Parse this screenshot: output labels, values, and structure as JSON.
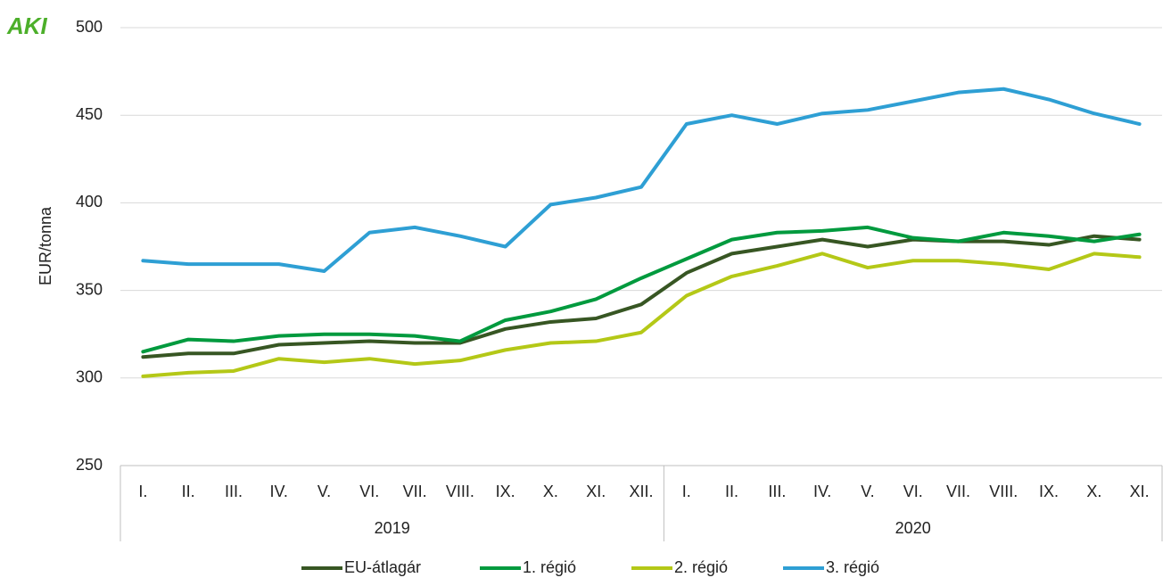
{
  "logo": "AKI",
  "chart_data": {
    "type": "line",
    "y_label": "EUR/tonna",
    "categories": [
      "I.",
      "II.",
      "III.",
      "IV.",
      "V.",
      "VI.",
      "VII.",
      "VIII.",
      "IX.",
      "X.",
      "XI.",
      "XII.",
      "I.",
      "II.",
      "III.",
      "IV.",
      "V.",
      "VI.",
      "VII.",
      "VIII.",
      "IX.",
      "X.",
      "XI."
    ],
    "category_groups": [
      {
        "label": "2019",
        "size": 12
      },
      {
        "label": "2020",
        "size": 11
      }
    ],
    "series": [
      {
        "name": "EU-átlagár",
        "color": "#375623",
        "values": [
          312,
          314,
          314,
          319,
          320,
          321,
          320,
          320,
          328,
          332,
          334,
          342,
          360,
          371,
          375,
          379,
          375,
          379,
          378,
          378,
          376,
          381,
          379
        ]
      },
      {
        "name": "1. régió",
        "color": "#009a3e",
        "values": [
          315,
          322,
          321,
          324,
          325,
          325,
          324,
          321,
          333,
          338,
          345,
          357,
          368,
          379,
          383,
          384,
          386,
          380,
          378,
          383,
          381,
          378,
          382
        ]
      },
      {
        "name": "2. régió",
        "color": "#b4c817",
        "values": [
          301,
          303,
          304,
          311,
          309,
          311,
          308,
          310,
          316,
          320,
          321,
          326,
          347,
          358,
          364,
          371,
          363,
          367,
          367,
          365,
          362,
          371,
          369
        ]
      },
      {
        "name": "3. régió",
        "color": "#2e9fd4",
        "values": [
          367,
          365,
          365,
          365,
          361,
          383,
          386,
          381,
          375,
          399,
          403,
          409,
          445,
          450,
          445,
          451,
          453,
          458,
          463,
          465,
          459,
          451,
          445
        ]
      }
    ],
    "ylim": [
      250,
      500
    ],
    "yticks": [
      250,
      300,
      350,
      400,
      450,
      500
    ],
    "grid": true,
    "legend": "bottom"
  }
}
